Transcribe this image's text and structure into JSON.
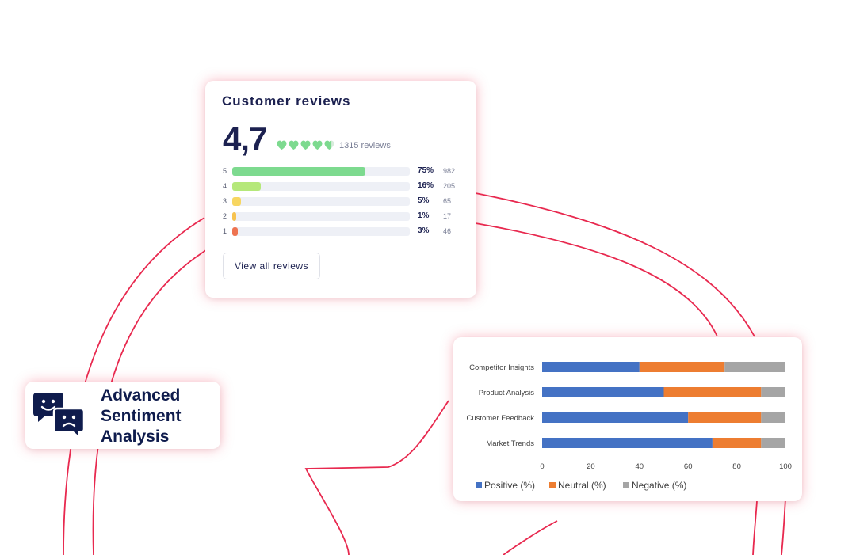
{
  "reviews": {
    "title": "Customer reviews",
    "rating": "4,7",
    "rating_value": 4.7,
    "max_rating": 5,
    "count_text": "1315 reviews",
    "accent_color": "#7dda8f",
    "breakdown": [
      {
        "star": "5",
        "percent": "75%",
        "fraction": 0.75,
        "count": "982",
        "color": "#7dda8f"
      },
      {
        "star": "4",
        "percent": "16%",
        "fraction": 0.16,
        "count": "205",
        "color": "#b5e87a"
      },
      {
        "star": "3",
        "percent": "5%",
        "fraction": 0.05,
        "count": "65",
        "color": "#f7d661"
      },
      {
        "star": "2",
        "percent": "1%",
        "fraction": 0.01,
        "count": "17",
        "color": "#f7c350"
      },
      {
        "star": "1",
        "percent": "3%",
        "fraction": 0.03,
        "count": "46",
        "color": "#ee7350"
      }
    ],
    "view_all_label": "View all reviews"
  },
  "badge": {
    "line1": "Advanced",
    "line2": "Sentiment",
    "line3": "Analysis",
    "icons": [
      "smiley-chat-icon",
      "sad-chat-icon"
    ],
    "color": "#0f1c4d"
  },
  "chart_data": {
    "type": "bar",
    "orientation": "horizontal",
    "stacked": true,
    "categories": [
      "Competitor Insights",
      "Product Analysis",
      "Customer Feedback",
      "Market Trends"
    ],
    "series": [
      {
        "name": "Positive (%)",
        "color": "#4472c4",
        "values": [
          40,
          50,
          60,
          70
        ]
      },
      {
        "name": "Neutral (%)",
        "color": "#ed7d31",
        "values": [
          35,
          40,
          30,
          20
        ]
      },
      {
        "name": "Negative (%)",
        "color": "#a5a5a5",
        "values": [
          25,
          10,
          10,
          10
        ]
      }
    ],
    "xlim": [
      0,
      100
    ],
    "xticks": [
      "0",
      "20",
      "40",
      "60",
      "80",
      "100"
    ],
    "grid": false,
    "legend": "bottom"
  },
  "decor_color": "#e8294f"
}
